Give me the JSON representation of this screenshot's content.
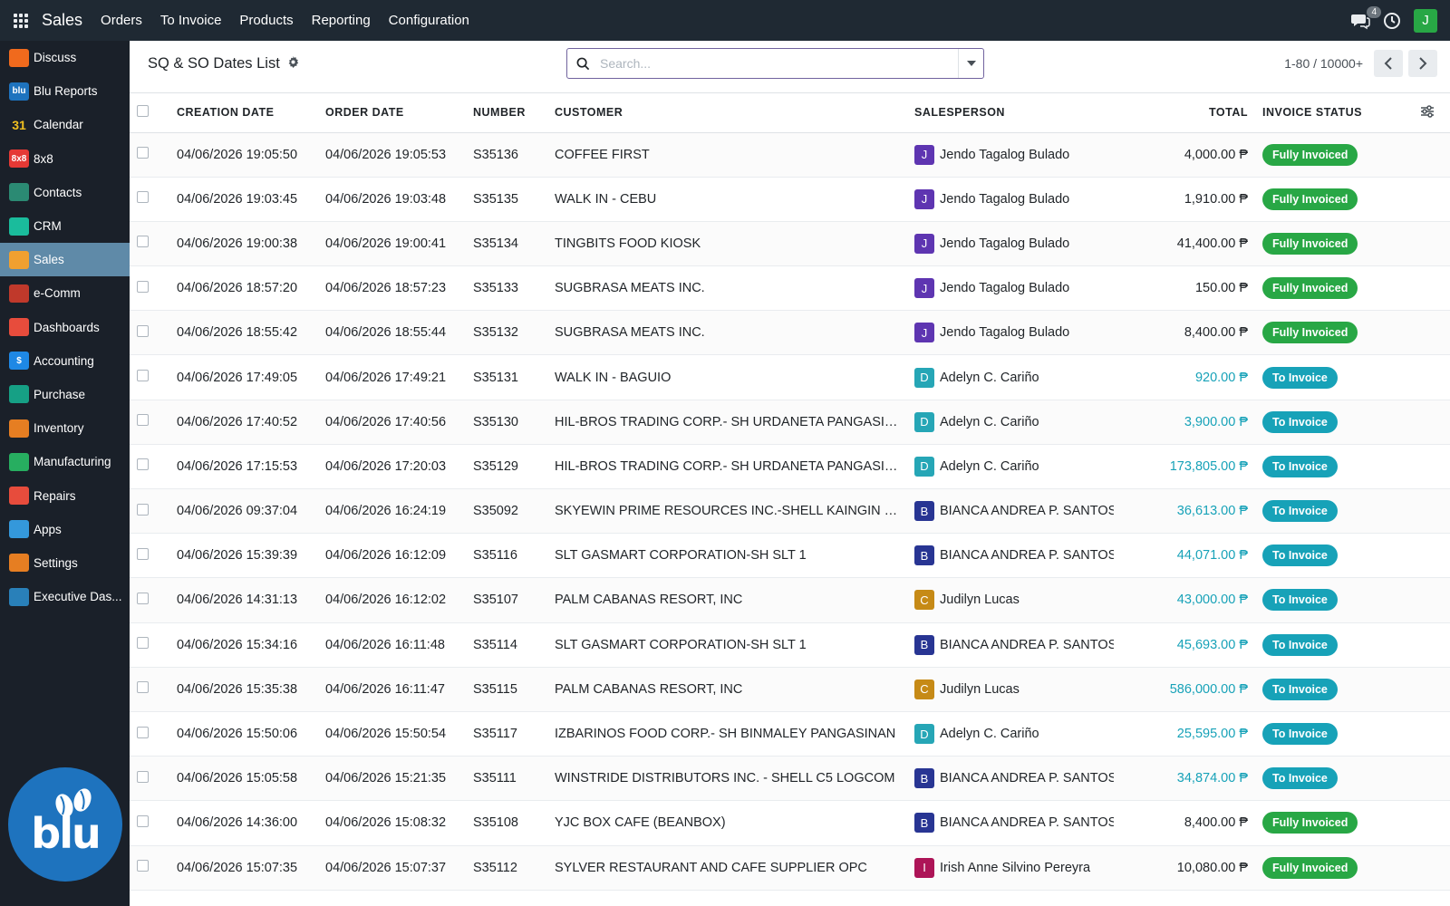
{
  "topbar": {
    "app_name": "Sales",
    "menu": [
      "Orders",
      "To Invoice",
      "Products",
      "Reporting",
      "Configuration"
    ],
    "chat_count": "4",
    "user_initial": "J",
    "colors": {
      "bg": "#1f2933",
      "user_avatar": "#28a745"
    }
  },
  "sidebar": {
    "items": [
      {
        "label": "Discuss",
        "icon": "discuss-icon",
        "color": "#f06a1d",
        "glyph": ""
      },
      {
        "label": "Blu Reports",
        "icon": "blu-reports-icon",
        "color": "#1e73be",
        "glyph": "blu"
      },
      {
        "label": "Calendar",
        "icon": "calendar-icon",
        "color": "#1a2029",
        "glyph": "31"
      },
      {
        "label": "8x8",
        "icon": "8x8-icon",
        "color": "#e53935",
        "glyph": "8x8"
      },
      {
        "label": "Contacts",
        "icon": "contacts-icon",
        "color": "#2b8a73",
        "glyph": ""
      },
      {
        "label": "CRM",
        "icon": "crm-icon",
        "color": "#1abc9c",
        "glyph": ""
      },
      {
        "label": "Sales",
        "icon": "sales-icon",
        "color": "#f0a030",
        "glyph": ""
      },
      {
        "label": "e-Comm",
        "icon": "ecomm-icon",
        "color": "#c0392b",
        "glyph": ""
      },
      {
        "label": "Dashboards",
        "icon": "dashboards-icon",
        "color": "#e74c3c",
        "glyph": ""
      },
      {
        "label": "Accounting",
        "icon": "accounting-icon",
        "color": "#1e88e5",
        "glyph": "$"
      },
      {
        "label": "Purchase",
        "icon": "purchase-icon",
        "color": "#16a085",
        "glyph": ""
      },
      {
        "label": "Inventory",
        "icon": "inventory-icon",
        "color": "#e67e22",
        "glyph": ""
      },
      {
        "label": "Manufacturing",
        "icon": "manufacturing-icon",
        "color": "#27ae60",
        "glyph": ""
      },
      {
        "label": "Repairs",
        "icon": "repairs-icon",
        "color": "#e74c3c",
        "glyph": ""
      },
      {
        "label": "Apps",
        "icon": "apps-icon",
        "color": "#3498db",
        "glyph": ""
      },
      {
        "label": "Settings",
        "icon": "settings-icon",
        "color": "#e67e22",
        "glyph": ""
      },
      {
        "label": "Executive Das...",
        "icon": "executive-dashboard-icon",
        "color": "#2980b9",
        "glyph": ""
      }
    ],
    "active": "Sales",
    "logo_text": "blu"
  },
  "control": {
    "title": "SQ & SO Dates List",
    "search_placeholder": "Search...",
    "pager": "1-80 / 10000+"
  },
  "table": {
    "headers": {
      "creation_date": "CREATION DATE",
      "order_date": "ORDER DATE",
      "number": "NUMBER",
      "customer": "CUSTOMER",
      "salesperson": "SALESPERSON",
      "total": "TOTAL",
      "invoice_status": "INVOICE STATUS"
    },
    "status_colors": {
      "Fully Invoiced": "#28a745",
      "To Invoice": "#17a2b8"
    },
    "rows": [
      {
        "creation": "04/06/2026 19:05:50",
        "order": "04/06/2026 19:05:53",
        "number": "S35136",
        "customer": "COFFEE FIRST",
        "sp_initial": "J",
        "sp_color": "#5e35b1",
        "salesperson": "Jendo Tagalog Bulado",
        "total": "4,000.00 ₱",
        "status": "Fully Invoiced"
      },
      {
        "creation": "04/06/2026 19:03:45",
        "order": "04/06/2026 19:03:48",
        "number": "S35135",
        "customer": "WALK IN - CEBU",
        "sp_initial": "J",
        "sp_color": "#5e35b1",
        "salesperson": "Jendo Tagalog Bulado",
        "total": "1,910.00 ₱",
        "status": "Fully Invoiced"
      },
      {
        "creation": "04/06/2026 19:00:38",
        "order": "04/06/2026 19:00:41",
        "number": "S35134",
        "customer": "TINGBITS FOOD KIOSK",
        "sp_initial": "J",
        "sp_color": "#5e35b1",
        "salesperson": "Jendo Tagalog Bulado",
        "total": "41,400.00 ₱",
        "status": "Fully Invoiced"
      },
      {
        "creation": "04/06/2026 18:57:20",
        "order": "04/06/2026 18:57:23",
        "number": "S35133",
        "customer": "SUGBRASA MEATS INC.",
        "sp_initial": "J",
        "sp_color": "#5e35b1",
        "salesperson": "Jendo Tagalog Bulado",
        "total": "150.00 ₱",
        "status": "Fully Invoiced"
      },
      {
        "creation": "04/06/2026 18:55:42",
        "order": "04/06/2026 18:55:44",
        "number": "S35132",
        "customer": "SUGBRASA MEATS INC.",
        "sp_initial": "J",
        "sp_color": "#5e35b1",
        "salesperson": "Jendo Tagalog Bulado",
        "total": "8,400.00 ₱",
        "status": "Fully Invoiced"
      },
      {
        "creation": "04/06/2026 17:49:05",
        "order": "04/06/2026 17:49:21",
        "number": "S35131",
        "customer": "WALK IN - BAGUIO",
        "sp_initial": "D",
        "sp_color": "#26a6b6",
        "salesperson": "Adelyn C. Cariño",
        "total": "920.00 ₱",
        "status": "To Invoice"
      },
      {
        "creation": "04/06/2026 17:40:52",
        "order": "04/06/2026 17:40:56",
        "number": "S35130",
        "customer": "HIL-BROS TRADING CORP.- SH URDANETA PANGASINAN",
        "sp_initial": "D",
        "sp_color": "#26a6b6",
        "salesperson": "Adelyn C. Cariño",
        "total": "3,900.00 ₱",
        "status": "To Invoice"
      },
      {
        "creation": "04/06/2026 17:15:53",
        "order": "04/06/2026 17:20:03",
        "number": "S35129",
        "customer": "HIL-BROS TRADING CORP.- SH URDANETA PANGASINAN",
        "sp_initial": "D",
        "sp_color": "#26a6b6",
        "salesperson": "Adelyn C. Cariño",
        "total": "173,805.00 ₱",
        "status": "To Invoice"
      },
      {
        "creation": "04/06/2026 09:37:04",
        "order": "04/06/2026 16:24:19",
        "number": "S35092",
        "customer": "SKYEWIN PRIME RESOURCES INC.-SHELL KAINGIN QUE...",
        "sp_initial": "B",
        "sp_color": "#283593",
        "salesperson": "BIANCA ANDREA P. SANTOS",
        "total": "36,613.00 ₱",
        "status": "To Invoice"
      },
      {
        "creation": "04/06/2026 15:39:39",
        "order": "04/06/2026 16:12:09",
        "number": "S35116",
        "customer": "SLT GASMART CORPORATION-SH SLT 1",
        "sp_initial": "B",
        "sp_color": "#283593",
        "salesperson": "BIANCA ANDREA P. SANTOS",
        "total": "44,071.00 ₱",
        "status": "To Invoice"
      },
      {
        "creation": "04/06/2026 14:31:13",
        "order": "04/06/2026 16:12:02",
        "number": "S35107",
        "customer": "PALM CABANAS RESORT, INC",
        "sp_initial": "C",
        "sp_color": "#c68a16",
        "salesperson": "Judilyn Lucas",
        "total": "43,000.00 ₱",
        "status": "To Invoice"
      },
      {
        "creation": "04/06/2026 15:34:16",
        "order": "04/06/2026 16:11:48",
        "number": "S35114",
        "customer": "SLT GASMART CORPORATION-SH SLT 1",
        "sp_initial": "B",
        "sp_color": "#283593",
        "salesperson": "BIANCA ANDREA P. SANTOS",
        "total": "45,693.00 ₱",
        "status": "To Invoice"
      },
      {
        "creation": "04/06/2026 15:35:38",
        "order": "04/06/2026 16:11:47",
        "number": "S35115",
        "customer": "PALM CABANAS RESORT, INC",
        "sp_initial": "C",
        "sp_color": "#c68a16",
        "salesperson": "Judilyn Lucas",
        "total": "586,000.00 ₱",
        "status": "To Invoice"
      },
      {
        "creation": "04/06/2026 15:50:06",
        "order": "04/06/2026 15:50:54",
        "number": "S35117",
        "customer": "IZBARINOS FOOD CORP.- SH BINMALEY PANGASINAN",
        "sp_initial": "D",
        "sp_color": "#26a6b6",
        "salesperson": "Adelyn C. Cariño",
        "total": "25,595.00 ₱",
        "status": "To Invoice"
      },
      {
        "creation": "04/06/2026 15:05:58",
        "order": "04/06/2026 15:21:35",
        "number": "S35111",
        "customer": "WINSTRIDE DISTRIBUTORS INC. - SHELL C5 LOGCOM",
        "sp_initial": "B",
        "sp_color": "#283593",
        "salesperson": "BIANCA ANDREA P. SANTOS",
        "total": "34,874.00 ₱",
        "status": "To Invoice"
      },
      {
        "creation": "04/06/2026 14:36:00",
        "order": "04/06/2026 15:08:32",
        "number": "S35108",
        "customer": "YJC BOX CAFE (BEANBOX)",
        "sp_initial": "B",
        "sp_color": "#283593",
        "salesperson": "BIANCA ANDREA P. SANTOS",
        "total": "8,400.00 ₱",
        "status": "Fully Invoiced"
      },
      {
        "creation": "04/06/2026 15:07:35",
        "order": "04/06/2026 15:07:37",
        "number": "S35112",
        "customer": "SYLVER RESTAURANT AND CAFE SUPPLIER OPC",
        "sp_initial": "I",
        "sp_color": "#ad1457",
        "salesperson": "Irish Anne Silvino Pereyra",
        "total": "10,080.00 ₱",
        "status": "Fully Invoiced"
      }
    ]
  }
}
